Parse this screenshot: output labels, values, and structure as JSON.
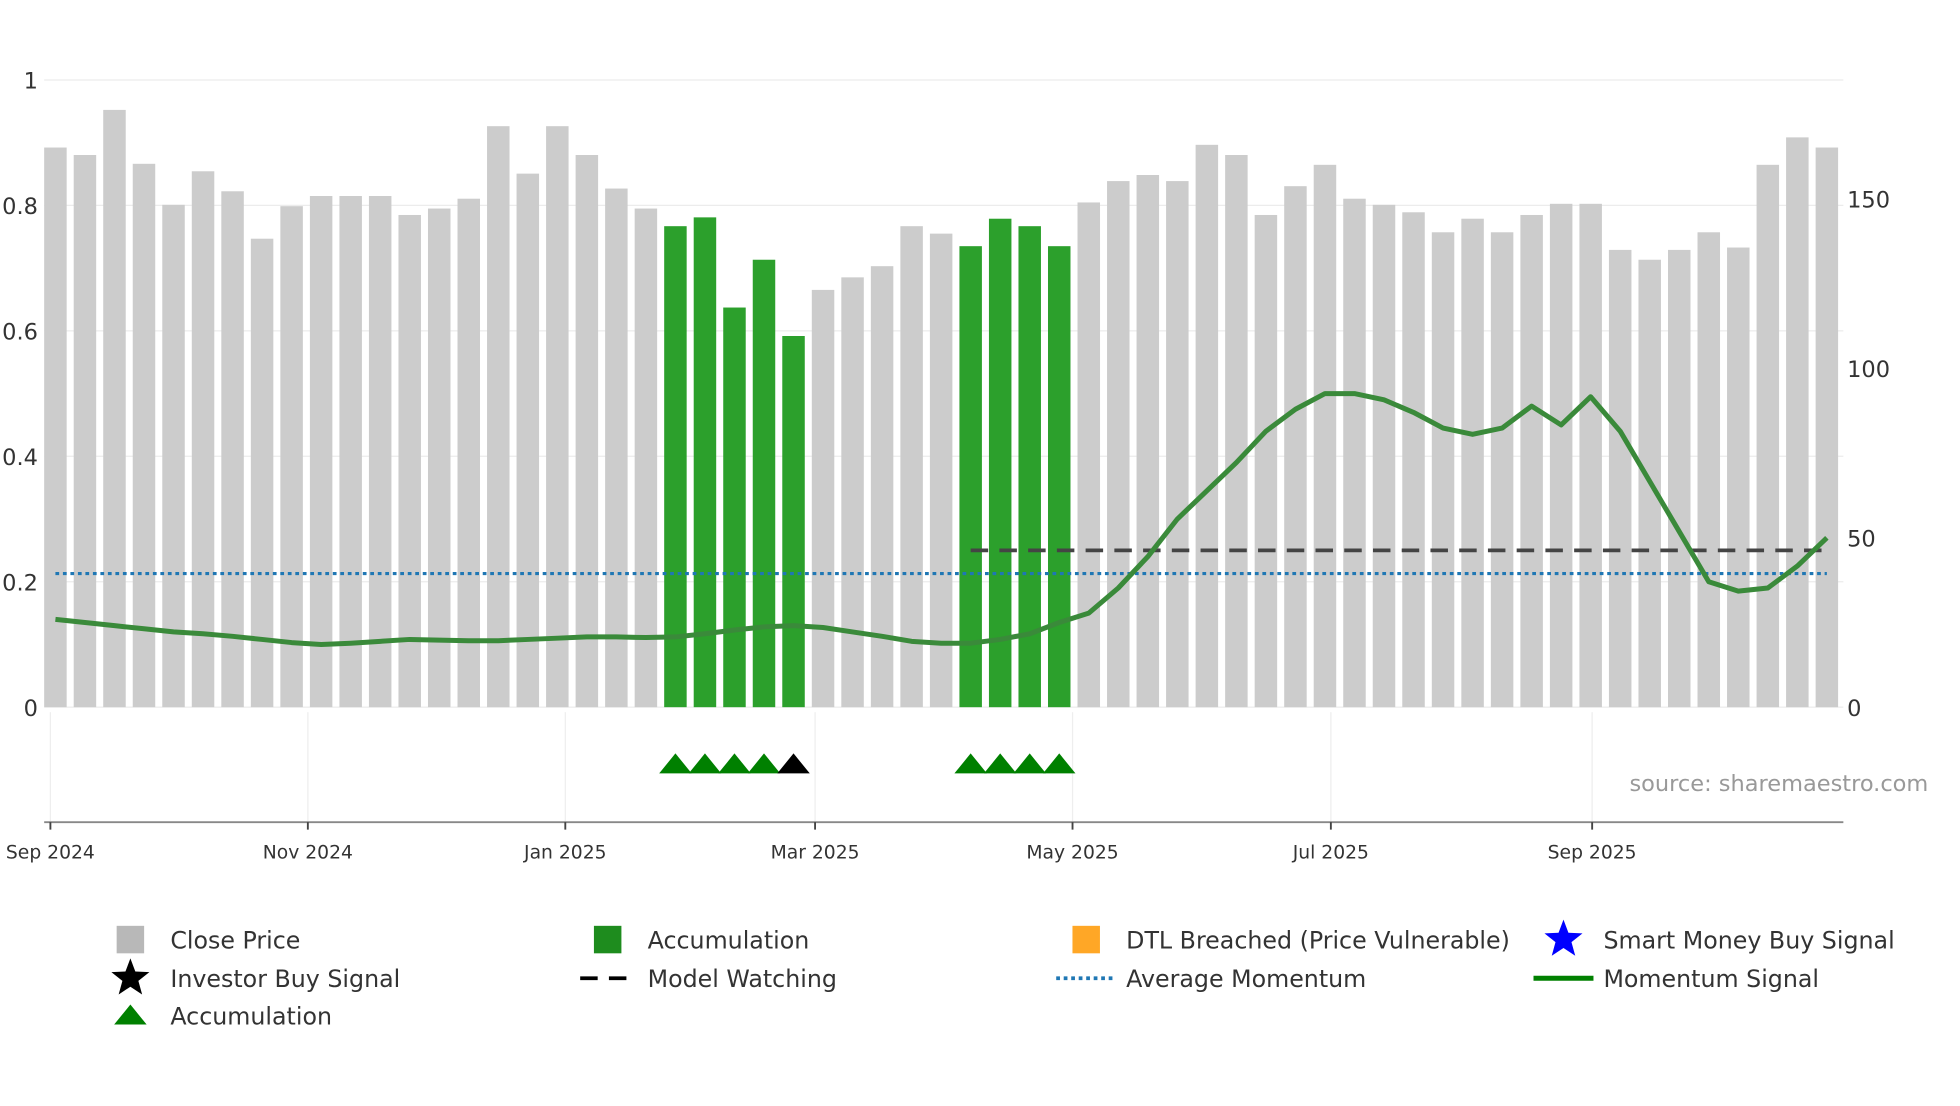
{
  "chart_data": {
    "type": "bar",
    "title": "",
    "source": "source: sharemaestro.com",
    "x_unit": "week index",
    "x_ticks": [
      {
        "label": "Sep 2024",
        "at": -0.17
      },
      {
        "label": "Nov 2024",
        "at": 8.55
      },
      {
        "label": "Jan 2025",
        "at": 17.27
      },
      {
        "label": "Mar 2025",
        "at": 25.73
      },
      {
        "label": "May 2025",
        "at": 34.45
      },
      {
        "label": "Jul 2025",
        "at": 43.2
      },
      {
        "label": "Sep 2025",
        "at": 52.05
      }
    ],
    "left_axis": {
      "range": [
        0,
        1
      ],
      "ticks": [
        "0",
        "0.2",
        "0.4",
        "0.6",
        "0.8",
        "1"
      ],
      "tick_values": [
        0,
        0.2,
        0.4,
        0.6,
        0.8,
        1
      ]
    },
    "right_axis": {
      "range": [
        0,
        185
      ],
      "ticks": [
        "0",
        "50",
        "100",
        "150"
      ],
      "tick_values": [
        0,
        50,
        100,
        150
      ]
    },
    "close_price": [
      165.1,
      162.9,
      176.2,
      160.3,
      148.2,
      158.1,
      152.2,
      138.2,
      147.8,
      150.8,
      150.8,
      150.8,
      145.2,
      147.1,
      150.0,
      171.4,
      157.4,
      171.4,
      162.9,
      153.0,
      147.1,
      141.9,
      144.5,
      117.9,
      132.0,
      109.5,
      123.1,
      126.8,
      130.1,
      141.9,
      139.7,
      136.0,
      144.1,
      141.9,
      136.0,
      148.9,
      155.2,
      157.0,
      155.2,
      165.9,
      162.9,
      145.2,
      153.7,
      160.0,
      150.0,
      148.2,
      146.0,
      140.1,
      144.1,
      140.1,
      145.2,
      148.5,
      148.5,
      134.9,
      132.0,
      134.9,
      140.1,
      135.6,
      160.0,
      168.1,
      165.1
    ],
    "accumulation_bars": [
      21,
      22,
      23,
      24,
      25,
      31,
      32,
      33,
      34
    ],
    "momentum_signal": [
      0.14,
      0.135,
      0.13,
      0.125,
      0.12,
      0.117,
      0.113,
      0.108,
      0.103,
      0.1,
      0.102,
      0.105,
      0.108,
      0.107,
      0.106,
      0.106,
      0.108,
      0.11,
      0.112,
      0.112,
      0.111,
      0.112,
      0.117,
      0.123,
      0.128,
      0.13,
      0.127,
      0.12,
      0.113,
      0.105,
      0.102,
      0.102,
      0.108,
      0.117,
      0.135,
      0.15,
      0.19,
      0.24,
      0.3,
      0.345,
      0.39,
      0.44,
      0.475,
      0.5,
      0.5,
      0.49,
      0.47,
      0.445,
      0.435,
      0.445,
      0.48,
      0.45,
      0.495,
      0.44,
      0.36,
      0.28,
      0.2,
      0.185,
      0.19,
      0.225,
      0.27
    ],
    "average_momentum": 0.213,
    "model_watching": {
      "value": 0.25,
      "from_index": 31
    },
    "accumulation_markers": [
      21,
      22,
      23,
      24,
      31,
      32,
      33,
      34
    ],
    "investor_buy_markers": [
      25
    ],
    "colors": {
      "price": "#cccccc",
      "accumulation": "#2ca02c",
      "momentum": "#3a8a3a",
      "average": "#1f77b4",
      "marker": "#008000",
      "dtl": "#ffa726",
      "smart": "#0000ff"
    },
    "legend": [
      {
        "label": "Close Price",
        "symbol": "square",
        "color": "#b8b8b8"
      },
      {
        "label": "Accumulation",
        "symbol": "square",
        "color": "#1e8c1e"
      },
      {
        "label": "DTL Breached (Price Vulnerable)",
        "symbol": "square",
        "color": "#ffa726"
      },
      {
        "label": "Smart Money Buy Signal",
        "symbol": "star",
        "color": "#0000ff"
      },
      {
        "label": "Investor Buy Signal",
        "symbol": "star",
        "color": "#000000"
      },
      {
        "label": "Model Watching",
        "symbol": "dash",
        "color": "#000000"
      },
      {
        "label": "Average Momentum",
        "symbol": "dot",
        "color": "#1f77b4"
      },
      {
        "label": "Momentum Signal",
        "symbol": "line",
        "color": "#008000"
      },
      {
        "label": "Accumulation",
        "symbol": "triangle",
        "color": "#008000"
      }
    ]
  }
}
